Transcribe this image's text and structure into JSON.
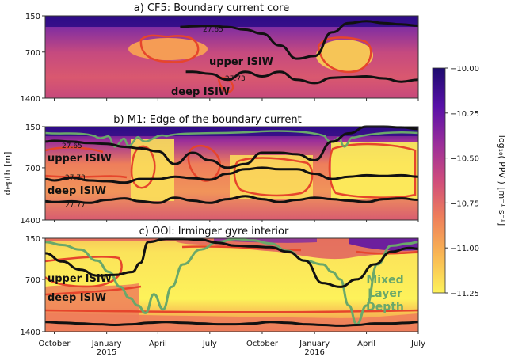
{
  "chart_data": [
    {
      "type": "heatmap",
      "title": "a) CF5: Boundary current core",
      "ylabel": "",
      "y_ticks": [
        150,
        700,
        1400
      ],
      "y_range": [
        1400,
        150
      ],
      "y_inverted": true,
      "contours": [
        {
          "label": "27.65",
          "x": [
            "2015-05-10",
            "2015-06-01",
            "2015-07-01",
            "2015-08-01",
            "2015-09-01",
            "2015-10-01",
            "2015-11-01",
            "2015-12-01",
            "2016-01-01",
            "2016-02-01",
            "2016-03-01",
            "2016-04-01",
            "2016-05-01",
            "2016-06-01",
            "2016-07-01"
          ],
          "depth": [
            320,
            310,
            300,
            320,
            360,
            420,
            600,
            800,
            760,
            400,
            260,
            230,
            260,
            280,
            300
          ]
        },
        {
          "label": "27.73",
          "x": [
            "2015-05-20",
            "2015-06-01",
            "2015-07-01",
            "2015-08-01",
            "2015-09-01",
            "2015-10-01",
            "2015-11-01",
            "2015-12-01",
            "2016-01-01",
            "2016-02-01",
            "2016-03-01",
            "2016-04-01",
            "2016-05-01",
            "2016-06-01",
            "2016-07-01"
          ],
          "depth": [
            1000,
            1000,
            1030,
            1120,
            1000,
            1070,
            1000,
            1120,
            1170,
            1090,
            1080,
            1070,
            1100,
            1150,
            1120
          ]
        }
      ],
      "annotations": [
        "upper ISIW",
        "deep ISIW"
      ]
    },
    {
      "type": "heatmap",
      "title": "b) M1: Edge of the boundary current",
      "ylabel": "depth [m]",
      "y_ticks": [
        150,
        700,
        1400
      ],
      "y_range": [
        1400,
        150
      ],
      "y_inverted": true,
      "contours": [
        {
          "label": "27.65",
          "x": [
            "2014-09-15",
            "2014-10-01",
            "2014-11-01",
            "2014-12-01",
            "2015-01-01",
            "2015-02-01",
            "2015-03-01",
            "2015-04-01",
            "2015-05-01",
            "2015-06-01",
            "2015-07-01",
            "2015-08-01",
            "2015-09-01",
            "2015-10-01",
            "2015-11-01",
            "2015-12-01",
            "2016-01-01",
            "2016-02-01",
            "2016-03-01",
            "2016-04-01",
            "2016-05-01",
            "2016-06-01",
            "2016-07-01"
          ],
          "depth": [
            350,
            340,
            350,
            370,
            380,
            420,
            440,
            480,
            650,
            500,
            600,
            700,
            650,
            500,
            500,
            520,
            600,
            350,
            240,
            150,
            150,
            160,
            180
          ]
        },
        {
          "label": "27.73",
          "x": [
            "2014-09-15",
            "2014-10-01",
            "2014-11-01",
            "2014-12-01",
            "2015-01-01",
            "2015-02-01",
            "2015-03-01",
            "2015-04-01",
            "2015-05-01",
            "2015-06-01",
            "2015-07-01",
            "2015-08-01",
            "2015-09-01",
            "2015-10-01",
            "2015-11-01",
            "2015-12-01",
            "2016-01-01",
            "2016-02-01",
            "2016-03-01",
            "2016-04-01",
            "2016-05-01",
            "2016-06-01",
            "2016-07-01"
          ],
          "depth": [
            850,
            870,
            830,
            870,
            880,
            900,
            850,
            850,
            820,
            840,
            860,
            780,
            720,
            700,
            720,
            720,
            780,
            850,
            820,
            800,
            810,
            800,
            820
          ]
        },
        {
          "label": "27.77",
          "x": [
            "2014-09-15",
            "2014-10-01",
            "2014-11-01",
            "2014-12-01",
            "2015-01-01",
            "2015-02-01",
            "2015-03-01",
            "2015-04-01",
            "2015-05-01",
            "2015-06-01",
            "2015-07-01",
            "2015-08-01",
            "2015-09-01",
            "2015-10-01",
            "2015-11-01",
            "2015-12-01",
            "2016-01-01",
            "2016-02-01",
            "2016-03-01",
            "2016-04-01",
            "2016-05-01",
            "2016-06-01",
            "2016-07-01"
          ],
          "depth": [
            1150,
            1160,
            1150,
            1170,
            1130,
            1110,
            1150,
            1170,
            1100,
            1140,
            1170,
            1120,
            1080,
            1120,
            1160,
            1130,
            1100,
            1120,
            1140,
            1160,
            1120,
            1110,
            1130
          ]
        }
      ],
      "annotations": [
        "upper ISIW",
        "deep ISIW"
      ]
    },
    {
      "type": "heatmap",
      "title": "c) OOI: Irminger gyre interior",
      "ylabel": "",
      "y_ticks": [
        150,
        700,
        1400
      ],
      "y_range": [
        1400,
        150
      ],
      "y_inverted": true,
      "x_ticks": [
        "October",
        "January\n2015",
        "April",
        "July",
        "October",
        "January\n2016",
        "April",
        "July"
      ],
      "mixed_layer_depth": {
        "label": "Mixed\nLayer\nDepth",
        "x": [
          "2014-09-15",
          "2014-10-15",
          "2014-11-15",
          "2014-12-15",
          "2015-01-05",
          "2015-01-25",
          "2015-02-10",
          "2015-02-25",
          "2015-03-10",
          "2015-03-25",
          "2015-04-10",
          "2015-04-25",
          "2015-05-15",
          "2015-06-15",
          "2015-07-15",
          "2015-08-15",
          "2015-09-15",
          "2015-10-15",
          "2015-11-15",
          "2015-12-15",
          "2016-01-15",
          "2016-02-01",
          "2016-02-15",
          "2016-03-01",
          "2016-03-15",
          "2016-04-01",
          "2016-04-20",
          "2016-05-15",
          "2016-06-15",
          "2016-07-01"
        ],
        "depth": [
          200,
          240,
          300,
          450,
          600,
          800,
          950,
          1050,
          1150,
          900,
          1100,
          800,
          500,
          300,
          200,
          160,
          180,
          220,
          320,
          450,
          500,
          600,
          700,
          1050,
          1300,
          1050,
          500,
          250,
          220,
          200
        ]
      },
      "contours": [
        {
          "label": "",
          "x": [
            "2014-09-15",
            "2014-10-15",
            "2014-11-15",
            "2014-12-15",
            "2015-01-15",
            "2015-02-15",
            "2015-03-01",
            "2015-03-15",
            "2015-04-15",
            "2015-05-15",
            "2015-06-15",
            "2015-07-15",
            "2015-08-15",
            "2015-09-15",
            "2015-10-15",
            "2015-11-15",
            "2015-12-15",
            "2016-01-15",
            "2016-02-15",
            "2016-03-15",
            "2016-04-15",
            "2016-05-15",
            "2016-06-15",
            "2016-07-01"
          ],
          "depth": [
            350,
            460,
            570,
            650,
            640,
            600,
            480,
            200,
            160,
            160,
            170,
            210,
            250,
            260,
            270,
            330,
            450,
            750,
            800,
            700,
            500,
            330,
            280,
            290
          ]
        },
        {
          "label": "",
          "x": [
            "2014-09-15",
            "2014-10-15",
            "2014-11-15",
            "2014-12-15",
            "2015-01-15",
            "2015-02-15",
            "2015-03-15",
            "2015-04-15",
            "2015-05-15",
            "2015-06-15",
            "2015-07-15",
            "2015-08-15",
            "2015-09-15",
            "2015-10-15",
            "2015-11-15",
            "2015-12-15",
            "2016-01-15",
            "2016-02-15",
            "2016-03-15",
            "2016-04-15",
            "2016-05-15",
            "2016-06-15",
            "2016-07-01"
          ],
          "depth": [
            1270,
            1280,
            1290,
            1300,
            1310,
            1300,
            1280,
            1270,
            1280,
            1290,
            1300,
            1300,
            1290,
            1270,
            1280,
            1300,
            1310,
            1320,
            1310,
            1290,
            1290,
            1280,
            1270
          ]
        }
      ],
      "annotations": [
        "upper ISIW",
        "deep ISIW"
      ]
    }
  ],
  "colorbar": {
    "label": "log₁₀( PPV ) [m⁻¹ s⁻¹]",
    "ticks": [
      "−10.00",
      "−10.25",
      "−10.50",
      "−10.75",
      "−11.00",
      "−11.25"
    ],
    "range": [
      -11.25,
      -10.0
    ],
    "colors": [
      "#fdf25a",
      "#f9b653",
      "#ee7e5b",
      "#cf4c7c",
      "#9b2e9a",
      "#5810a8",
      "#1d0b6e"
    ]
  },
  "colors": {
    "contour": "#111111",
    "hot_contour": "#e6452c",
    "mixed_layer": "#6aa86a",
    "frame": "#333333"
  }
}
